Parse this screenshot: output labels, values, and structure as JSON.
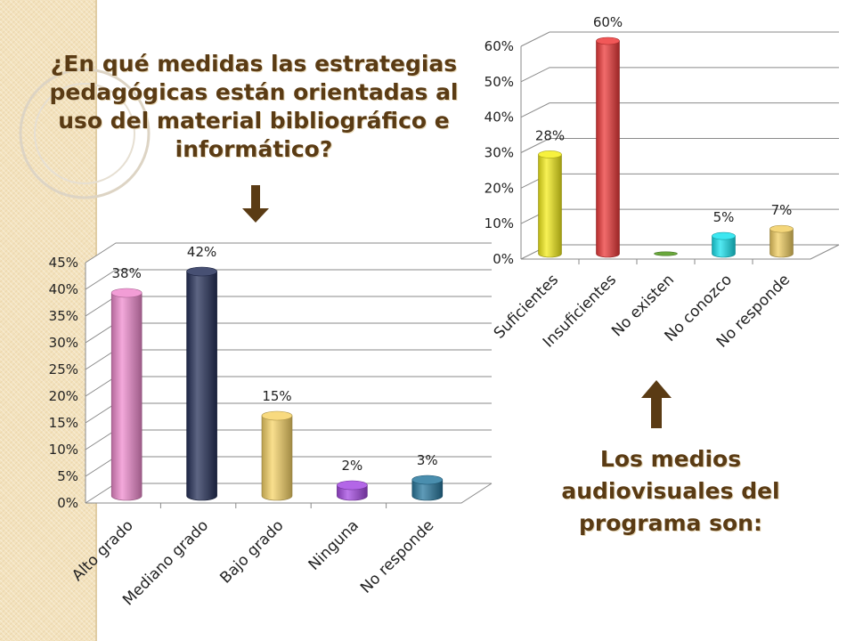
{
  "slide": {
    "question": "¿En qué medidas las estrategias pedagógicas están orientadas al uso del material bibliográfico e informático?",
    "answer_title": "Los medios audiovisuales del programa son:",
    "text_color": "#5a3b14",
    "band_color": "#f3e2bd"
  },
  "chart_data": [
    {
      "type": "bar",
      "categories": [
        "Alto grado",
        "Mediano grado",
        "Bajo grado",
        "Ninguna",
        "No responde"
      ],
      "values": [
        38,
        42,
        15,
        2,
        3
      ],
      "data_labels": [
        "38%",
        "42%",
        "15%",
        "2%",
        "3%"
      ],
      "colors": [
        "#f08ccf",
        "#27315a",
        "#f7d468",
        "#a64be3",
        "#2a7aa0"
      ],
      "title": "",
      "xlabel": "",
      "ylabel": "",
      "ylim": [
        0,
        45
      ],
      "y_ticks": [
        "0%",
        "5%",
        "10%",
        "15%",
        "20%",
        "25%",
        "30%",
        "35%",
        "40%",
        "45%"
      ],
      "grid": true,
      "legend": "none"
    },
    {
      "type": "bar",
      "categories": [
        "Suficientes",
        "Insuficientes",
        "No existen",
        "No conozco",
        "No responde"
      ],
      "values": [
        28,
        60,
        0,
        5,
        7
      ],
      "data_labels": [
        "28%",
        "60%",
        "",
        "5%",
        "7%"
      ],
      "colors": [
        "#f5ee1c",
        "#ee3b3b",
        "#6aa83c",
        "#19e3ef",
        "#f2cf62"
      ],
      "title": "",
      "xlabel": "",
      "ylabel": "",
      "ylim": [
        0,
        60
      ],
      "y_ticks": [
        "0%",
        "10%",
        "20%",
        "30%",
        "40%",
        "50%",
        "60%"
      ],
      "grid": true,
      "legend": "none"
    }
  ]
}
